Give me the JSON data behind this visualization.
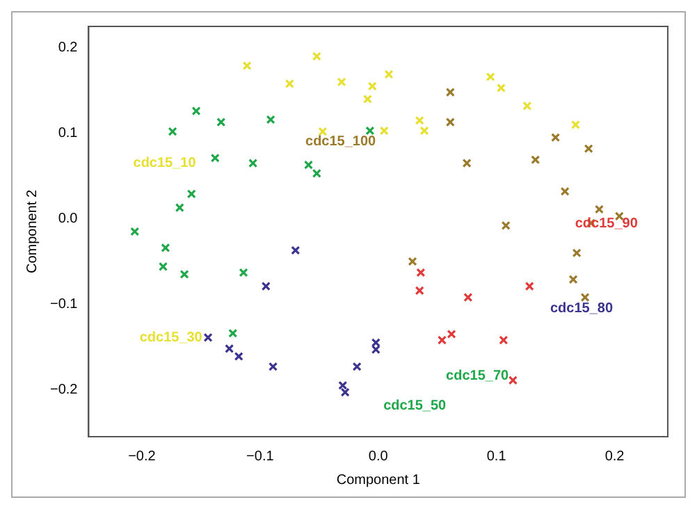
{
  "chart_data": {
    "type": "scatter",
    "xlabel": "Component 1",
    "ylabel": "Component 2",
    "xlim": [
      -0.245,
      0.245
    ],
    "ylim": [
      -0.255,
      0.225
    ],
    "xticks": [
      {
        "value": -0.2,
        "label": "−0.2"
      },
      {
        "value": -0.1,
        "label": "−0.1"
      },
      {
        "value": 0,
        "label": "0.0"
      },
      {
        "value": 0.1,
        "label": "0.1"
      },
      {
        "value": 0.2,
        "label": "0.2"
      }
    ],
    "yticks": [
      {
        "value": -0.2,
        "label": "−0.2"
      },
      {
        "value": -0.1,
        "label": "−0.1"
      },
      {
        "value": 0,
        "label": "0.0"
      },
      {
        "value": 0.1,
        "label": "0.1"
      },
      {
        "value": 0.2,
        "label": "0.2"
      }
    ],
    "grid": false,
    "legend": false,
    "marker": "cross",
    "series": [
      {
        "color": "#e8e030",
        "x": [
          -0.111,
          -0.052,
          -0.075,
          -0.031,
          -0.005,
          -0.009,
          0.009,
          -0.047,
          0.005,
          0.035,
          0.039,
          0.095,
          0.104,
          0.126,
          0.167
        ],
        "values": [
          0.179,
          0.19,
          0.158,
          0.16,
          0.155,
          0.14,
          0.169,
          0.102,
          0.103,
          0.115,
          0.103,
          0.166,
          0.153,
          0.132,
          0.11
        ]
      },
      {
        "color": "#1ea84a",
        "x": [
          -0.154,
          -0.133,
          -0.091,
          -0.174,
          -0.138,
          -0.106,
          -0.059,
          -0.052,
          -0.007,
          -0.158,
          -0.168,
          -0.206,
          -0.18,
          -0.182,
          -0.164,
          -0.114,
          -0.123
        ],
        "values": [
          0.126,
          0.113,
          0.116,
          0.102,
          0.071,
          0.065,
          0.063,
          0.053,
          0.103,
          0.029,
          0.013,
          -0.015,
          -0.034,
          -0.056,
          -0.065,
          -0.063,
          -0.134
        ]
      },
      {
        "color": "#3b3390",
        "x": [
          -0.07,
          -0.095,
          -0.144,
          -0.126,
          -0.118,
          -0.089,
          -0.018,
          -0.03,
          -0.028,
          -0.002,
          -0.002
        ],
        "values": [
          -0.037,
          -0.079,
          -0.139,
          -0.152,
          -0.161,
          -0.173,
          -0.173,
          -0.195,
          -0.203,
          -0.145,
          -0.153
        ]
      },
      {
        "color": "#e03a3a",
        "x": [
          0.036,
          0.035,
          0.076,
          0.128,
          0.062,
          0.054,
          0.106,
          0.114
        ],
        "values": [
          -0.063,
          -0.084,
          -0.092,
          -0.079,
          -0.135,
          -0.142,
          -0.142,
          -0.189
        ]
      },
      {
        "color": "#9c7a2c",
        "x": [
          0.061,
          0.061,
          0.075,
          0.133,
          0.15,
          0.178,
          0.158,
          0.187,
          0.204,
          0.18,
          0.108,
          0.029,
          0.168,
          0.165,
          0.175
        ],
        "values": [
          0.148,
          0.113,
          0.065,
          0.069,
          0.095,
          0.082,
          0.032,
          0.011,
          0.003,
          -0.005,
          -0.008,
          -0.05,
          -0.04,
          -0.071,
          -0.092
        ]
      }
    ],
    "annotations": [
      "cdc15_10",
      "cdc15_100",
      "cdc15_30",
      "cdc15_50",
      "cdc15_70",
      "cdc15_80",
      "cdc15_90"
    ]
  }
}
